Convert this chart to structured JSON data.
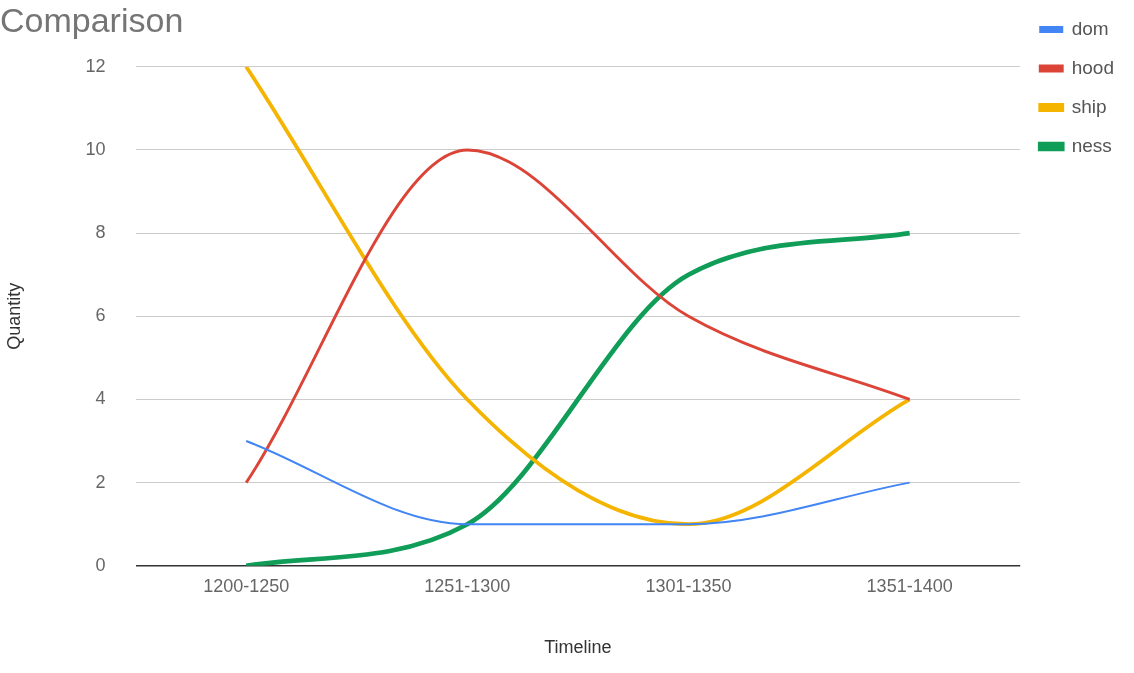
{
  "chart_data": {
    "type": "line",
    "title": "Comparison",
    "xlabel": "Timeline",
    "ylabel": "Quantity",
    "categories": [
      "1200-1250",
      "1251-1300",
      "1301-1350",
      "1351-1400"
    ],
    "series": [
      {
        "name": "dom",
        "color": "#4285f4",
        "values": [
          3,
          1,
          1,
          2
        ]
      },
      {
        "name": "hood",
        "color": "#db4437",
        "values": [
          2,
          10,
          6,
          4
        ]
      },
      {
        "name": "ship",
        "color": "#f4b400",
        "values": [
          12,
          4,
          1,
          4
        ]
      },
      {
        "name": "ness",
        "color": "#0f9d58",
        "values": [
          0,
          1,
          7,
          8
        ]
      }
    ],
    "ylim": [
      0,
      12
    ],
    "yticks": [
      0,
      2,
      4,
      6,
      8,
      10,
      12
    ],
    "grid": "y",
    "legend": "top right"
  }
}
